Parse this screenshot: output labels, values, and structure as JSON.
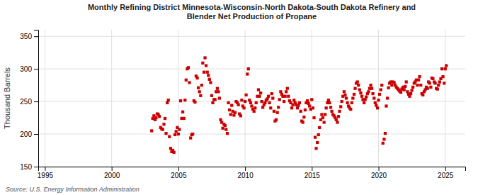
{
  "chart_data": {
    "type": "scatter",
    "title": "Monthly Refining District Minnesota-Wisconsin-North Dakota-South Dakota Refinery and\nBlender Net Production of Propane",
    "ylabel": "Thousand Barrels",
    "annotations": [
      "Source: U.S. Energy Information Administration"
    ],
    "color": "#cc0000",
    "marker": "square",
    "grid": true,
    "xlim": [
      1994.5,
      2026.5
    ],
    "xticks": [
      1995,
      2000,
      2005,
      2010,
      2015,
      2020,
      2025
    ],
    "ylim": [
      150,
      360
    ],
    "yticks": [
      150,
      200,
      250,
      300,
      350
    ],
    "x": [
      2003.0,
      2003.08,
      2003.17,
      2003.25,
      2003.33,
      2003.42,
      2003.5,
      2003.58,
      2003.67,
      2003.75,
      2003.83,
      2003.92,
      2004.0,
      2004.08,
      2004.17,
      2004.25,
      2004.33,
      2004.42,
      2004.5,
      2004.58,
      2004.67,
      2004.75,
      2004.83,
      2004.92,
      2005.0,
      2005.08,
      2005.17,
      2005.25,
      2005.33,
      2005.42,
      2005.5,
      2005.58,
      2005.67,
      2005.75,
      2005.83,
      2005.92,
      2006.0,
      2006.08,
      2006.17,
      2006.25,
      2006.33,
      2006.42,
      2006.5,
      2006.58,
      2006.67,
      2006.75,
      2006.83,
      2006.92,
      2007.0,
      2007.08,
      2007.17,
      2007.25,
      2007.33,
      2007.42,
      2007.5,
      2007.58,
      2007.67,
      2007.75,
      2007.83,
      2007.92,
      2008.0,
      2008.08,
      2008.17,
      2008.25,
      2008.33,
      2008.42,
      2008.5,
      2008.58,
      2008.67,
      2008.75,
      2008.83,
      2008.92,
      2009.0,
      2009.08,
      2009.17,
      2009.25,
      2009.33,
      2009.42,
      2009.5,
      2009.58,
      2009.67,
      2009.75,
      2009.83,
      2009.92,
      2010.0,
      2010.08,
      2010.17,
      2010.25,
      2010.33,
      2010.42,
      2010.5,
      2010.58,
      2010.67,
      2010.75,
      2010.83,
      2010.92,
      2011.0,
      2011.08,
      2011.17,
      2011.25,
      2011.33,
      2011.42,
      2011.5,
      2011.58,
      2011.67,
      2011.75,
      2011.83,
      2011.92,
      2012.0,
      2012.08,
      2012.17,
      2012.25,
      2012.33,
      2012.42,
      2012.5,
      2012.58,
      2012.67,
      2012.75,
      2012.83,
      2012.92,
      2013.0,
      2013.08,
      2013.17,
      2013.25,
      2013.33,
      2013.42,
      2013.5,
      2013.58,
      2013.67,
      2013.75,
      2013.83,
      2013.92,
      2014.0,
      2014.08,
      2014.17,
      2014.25,
      2014.33,
      2014.42,
      2014.5,
      2014.58,
      2014.67,
      2014.75,
      2014.83,
      2014.92,
      2015.0,
      2015.08,
      2015.17,
      2015.25,
      2015.33,
      2015.42,
      2015.5,
      2015.58,
      2015.67,
      2015.75,
      2015.83,
      2015.92,
      2016.0,
      2016.08,
      2016.17,
      2016.25,
      2016.33,
      2016.42,
      2016.5,
      2016.58,
      2016.67,
      2016.75,
      2016.83,
      2016.92,
      2017.0,
      2017.08,
      2017.17,
      2017.25,
      2017.33,
      2017.42,
      2017.5,
      2017.58,
      2017.67,
      2017.75,
      2017.83,
      2017.92,
      2018.0,
      2018.08,
      2018.17,
      2018.25,
      2018.33,
      2018.42,
      2018.5,
      2018.58,
      2018.67,
      2018.75,
      2018.83,
      2018.92,
      2019.0,
      2019.08,
      2019.17,
      2019.25,
      2019.33,
      2019.42,
      2019.5,
      2019.58,
      2019.67,
      2019.75,
      2019.83,
      2019.92,
      2020.0,
      2020.08,
      2020.17,
      2020.25,
      2020.33,
      2020.42,
      2020.5,
      2020.58,
      2020.67,
      2020.75,
      2020.83,
      2020.92,
      2021.0,
      2021.08,
      2021.17,
      2021.25,
      2021.33,
      2021.42,
      2021.5,
      2021.58,
      2021.67,
      2021.75,
      2021.83,
      2021.92,
      2022.0,
      2022.08,
      2022.17,
      2022.25,
      2022.33,
      2022.42,
      2022.5,
      2022.58,
      2022.67,
      2022.75,
      2022.83,
      2022.92,
      2023.0,
      2023.08,
      2023.17,
      2023.25,
      2023.33,
      2023.42,
      2023.5,
      2023.58,
      2023.67,
      2023.75,
      2023.83,
      2023.92,
      2024.0,
      2024.08,
      2024.17,
      2024.25,
      2024.33,
      2024.42,
      2024.5,
      2024.58,
      2024.67,
      2024.75,
      2024.83,
      2024.92,
      2025.0,
      2025.08
    ],
    "values": [
      205,
      224,
      228,
      222,
      225,
      231,
      230,
      227,
      210,
      208,
      207,
      215,
      224,
      201,
      248,
      252,
      196,
      178,
      173,
      175,
      172,
      199,
      204,
      210,
      200,
      207,
      251,
      224,
      234,
      224,
      252,
      283,
      300,
      302,
      279,
      194,
      199,
      200,
      251,
      249,
      289,
      286,
      271,
      265,
      259,
      275,
      309,
      295,
      317,
      305,
      295,
      290,
      284,
      279,
      259,
      248,
      253,
      253,
      265,
      270,
      265,
      255,
      222,
      218,
      209,
      215,
      213,
      207,
      201,
      248,
      237,
      230,
      244,
      235,
      229,
      233,
      250,
      248,
      245,
      231,
      228,
      252,
      243,
      240,
      250,
      260,
      292,
      300,
      252,
      248,
      243,
      238,
      235,
      240,
      248,
      258,
      268,
      258,
      263,
      250,
      241,
      245,
      248,
      252,
      254,
      258,
      248,
      240,
      262,
      255,
      235,
      220,
      222,
      233,
      241,
      253,
      265,
      261,
      258,
      250,
      258,
      265,
      270,
      258,
      251,
      248,
      240,
      245,
      252,
      248,
      245,
      240,
      244,
      248,
      235,
      220,
      218,
      226,
      237,
      248,
      251,
      247,
      243,
      238,
      253,
      240,
      225,
      195,
      178,
      187,
      199,
      210,
      222,
      230,
      225,
      218,
      230,
      240,
      248,
      252,
      248,
      241,
      235,
      230,
      228,
      225,
      222,
      218,
      227,
      235,
      242,
      250,
      258,
      265,
      260,
      255,
      248,
      243,
      240,
      238,
      248,
      255,
      261,
      270,
      278,
      280,
      275,
      268,
      263,
      258,
      253,
      248,
      253,
      257,
      262,
      265,
      270,
      275,
      270,
      262,
      255,
      248,
      244,
      240,
      252,
      261,
      268,
      275,
      186,
      192,
      201,
      243,
      255,
      271,
      278,
      280,
      275,
      280,
      279,
      275,
      272,
      270,
      268,
      266,
      264,
      269,
      272,
      268,
      273,
      280,
      265,
      261,
      258,
      262,
      267,
      272,
      278,
      280,
      283,
      275,
      283,
      288,
      275,
      262,
      260,
      265,
      268,
      272,
      270,
      280,
      278,
      272,
      286,
      285,
      280,
      278,
      270,
      269,
      275,
      280,
      285,
      300,
      288,
      278,
      300,
      305
    ]
  }
}
